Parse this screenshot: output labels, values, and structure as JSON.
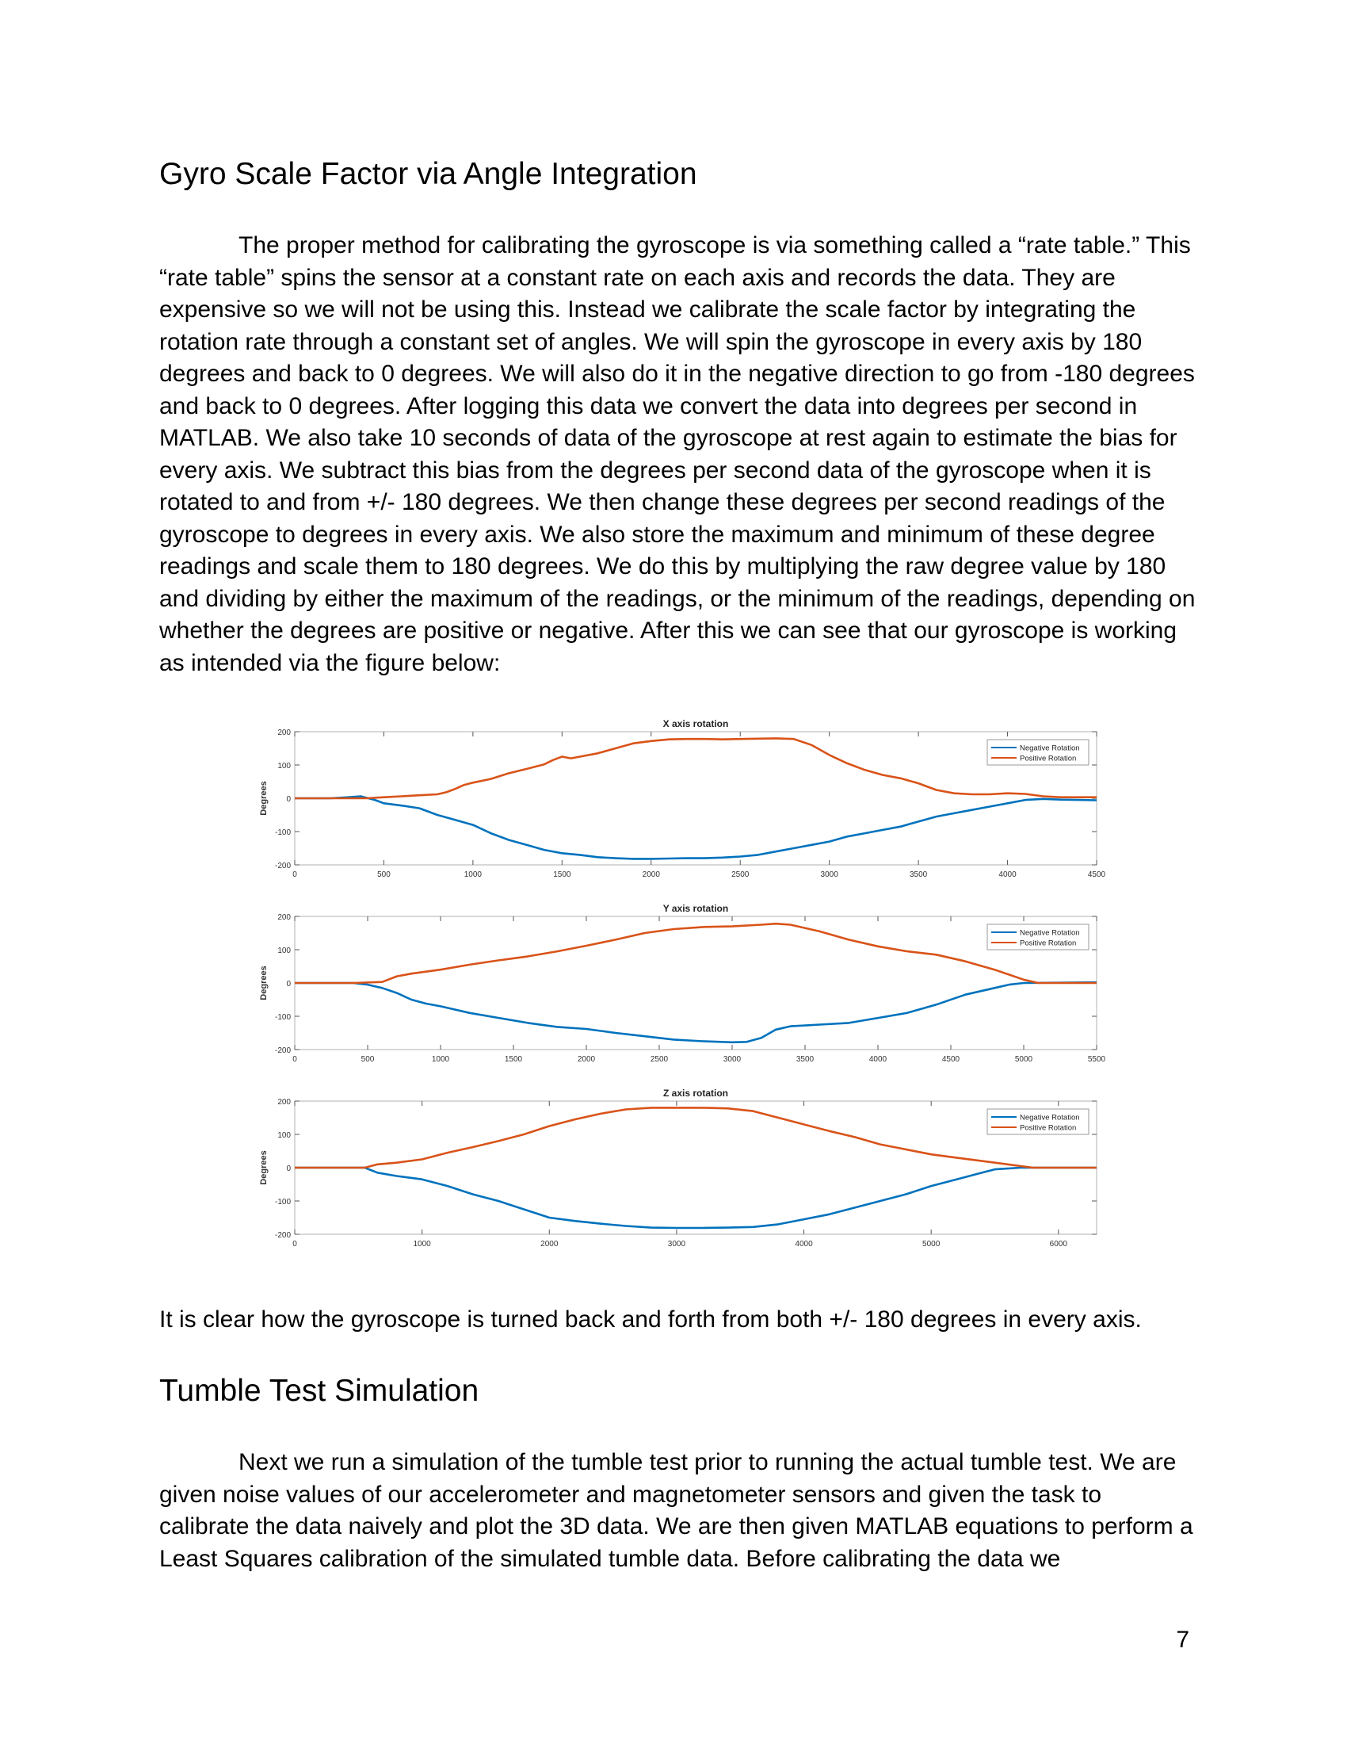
{
  "sections": [
    {
      "heading": "Gyro Scale Factor via Angle Integration",
      "paragraph": "The proper method for calibrating the gyroscope is via something called a “rate table.” This “rate table” spins the sensor at a constant rate on each axis and records the data. They are expensive so we will not be using this. Instead we calibrate the scale factor by integrating the rotation rate through a constant set of angles. We will spin the gyroscope in every axis by 180 degrees and back to 0 degrees. We will also do it in the negative direction to go from -180 degrees and back to 0 degrees. After logging this data we convert the data into degrees per second in MATLAB. We also take 10 seconds of data of the gyroscope at rest again to estimate the bias for every axis. We subtract this bias from the degrees per second data of the gyroscope when it is rotated to and from +/- 180 degrees. We then change these degrees per second readings of the gyroscope to degrees in every axis. We also store the maximum and minimum of these degree readings and scale them to 180 degrees. We do this by multiplying the raw degree value by 180 and dividing by either the maximum of the readings, or the minimum of the readings, depending on whether the degrees are positive or negative. After this we can see that our gyroscope is working as intended via the figure below:"
    },
    {
      "caption": "It is clear how the gyroscope is turned back and forth from both +/- 180 degrees in every axis."
    },
    {
      "heading": "Tumble Test Simulation",
      "paragraph": "Next we run a simulation of the tumble test prior to running the actual tumble test. We are given noise values of our accelerometer and magnetometer sensors and given the task to calibrate the data naively and plot the 3D data. We are then given MATLAB equations to perform a Least Squares calibration of the simulated tumble data. Before calibrating the data we"
    }
  ],
  "page_number": "7",
  "colors": {
    "negative": "#0072BD",
    "positive": "#D95319"
  },
  "chart_data": [
    {
      "type": "line",
      "title": "X axis rotation",
      "ylabel": "Degrees",
      "xlim": [
        0,
        4500
      ],
      "ylim": [
        -200,
        200
      ],
      "xticks": [
        0,
        500,
        1000,
        1500,
        2000,
        2500,
        3000,
        3500,
        4000,
        4500
      ],
      "yticks": [
        200,
        100,
        0,
        -100,
        -200
      ],
      "legend": "top-right",
      "series": [
        {
          "name": "Negative Rotation",
          "points": [
            [
              0,
              0
            ],
            [
              200,
              0
            ],
            [
              300,
              3
            ],
            [
              370,
              6
            ],
            [
              400,
              2
            ],
            [
              450,
              -5
            ],
            [
              500,
              -15
            ],
            [
              600,
              -22
            ],
            [
              700,
              -30
            ],
            [
              800,
              -50
            ],
            [
              900,
              -65
            ],
            [
              1000,
              -80
            ],
            [
              1100,
              -105
            ],
            [
              1200,
              -125
            ],
            [
              1300,
              -140
            ],
            [
              1400,
              -155
            ],
            [
              1500,
              -165
            ],
            [
              1600,
              -170
            ],
            [
              1700,
              -177
            ],
            [
              1800,
              -180
            ],
            [
              1900,
              -182
            ],
            [
              2000,
              -182
            ],
            [
              2100,
              -181
            ],
            [
              2200,
              -180
            ],
            [
              2300,
              -180
            ],
            [
              2400,
              -178
            ],
            [
              2500,
              -175
            ],
            [
              2600,
              -170
            ],
            [
              2700,
              -160
            ],
            [
              2800,
              -150
            ],
            [
              2900,
              -140
            ],
            [
              3000,
              -130
            ],
            [
              3100,
              -115
            ],
            [
              3200,
              -105
            ],
            [
              3300,
              -95
            ],
            [
              3400,
              -85
            ],
            [
              3500,
              -70
            ],
            [
              3600,
              -55
            ],
            [
              3700,
              -45
            ],
            [
              3800,
              -35
            ],
            [
              3900,
              -25
            ],
            [
              4000,
              -15
            ],
            [
              4100,
              -5
            ],
            [
              4200,
              -2
            ],
            [
              4300,
              -4
            ],
            [
              4400,
              -5
            ],
            [
              4500,
              -6
            ]
          ]
        },
        {
          "name": "Positive Rotation",
          "points": [
            [
              0,
              0
            ],
            [
              400,
              0
            ],
            [
              500,
              3
            ],
            [
              600,
              6
            ],
            [
              700,
              9
            ],
            [
              800,
              12
            ],
            [
              850,
              18
            ],
            [
              900,
              28
            ],
            [
              950,
              40
            ],
            [
              1000,
              47
            ],
            [
              1100,
              58
            ],
            [
              1200,
              75
            ],
            [
              1300,
              88
            ],
            [
              1400,
              102
            ],
            [
              1450,
              115
            ],
            [
              1500,
              125
            ],
            [
              1550,
              120
            ],
            [
              1600,
              125
            ],
            [
              1700,
              135
            ],
            [
              1800,
              150
            ],
            [
              1900,
              165
            ],
            [
              2000,
              172
            ],
            [
              2100,
              177
            ],
            [
              2200,
              178
            ],
            [
              2300,
              178
            ],
            [
              2400,
              177
            ],
            [
              2500,
              178
            ],
            [
              2600,
              179
            ],
            [
              2700,
              180
            ],
            [
              2800,
              178
            ],
            [
              2900,
              160
            ],
            [
              3000,
              130
            ],
            [
              3100,
              105
            ],
            [
              3200,
              85
            ],
            [
              3300,
              70
            ],
            [
              3400,
              60
            ],
            [
              3500,
              45
            ],
            [
              3600,
              25
            ],
            [
              3700,
              15
            ],
            [
              3800,
              12
            ],
            [
              3900,
              12
            ],
            [
              4000,
              15
            ],
            [
              4100,
              13
            ],
            [
              4200,
              6
            ],
            [
              4300,
              3
            ],
            [
              4400,
              3
            ],
            [
              4500,
              3
            ]
          ]
        }
      ]
    },
    {
      "type": "line",
      "title": "Y axis rotation",
      "ylabel": "Degrees",
      "xlim": [
        0,
        5500
      ],
      "ylim": [
        -200,
        200
      ],
      "xticks": [
        0,
        500,
        1000,
        1500,
        2000,
        2500,
        3000,
        3500,
        4000,
        4500,
        5000,
        5500
      ],
      "yticks": [
        200,
        100,
        0,
        -100,
        -200
      ],
      "legend": "top-right",
      "series": [
        {
          "name": "Negative Rotation",
          "points": [
            [
              0,
              0
            ],
            [
              400,
              0
            ],
            [
              500,
              -5
            ],
            [
              600,
              -15
            ],
            [
              700,
              -30
            ],
            [
              800,
              -50
            ],
            [
              900,
              -62
            ],
            [
              1000,
              -70
            ],
            [
              1200,
              -90
            ],
            [
              1400,
              -105
            ],
            [
              1600,
              -120
            ],
            [
              1800,
              -132
            ],
            [
              2000,
              -138
            ],
            [
              2200,
              -150
            ],
            [
              2400,
              -160
            ],
            [
              2600,
              -170
            ],
            [
              2800,
              -175
            ],
            [
              3000,
              -178
            ],
            [
              3100,
              -177
            ],
            [
              3200,
              -165
            ],
            [
              3300,
              -140
            ],
            [
              3400,
              -130
            ],
            [
              3600,
              -125
            ],
            [
              3800,
              -120
            ],
            [
              4000,
              -105
            ],
            [
              4200,
              -90
            ],
            [
              4400,
              -65
            ],
            [
              4600,
              -35
            ],
            [
              4800,
              -15
            ],
            [
              4900,
              -5
            ],
            [
              5000,
              0
            ],
            [
              5500,
              2
            ]
          ]
        },
        {
          "name": "Positive Rotation",
          "points": [
            [
              0,
              0
            ],
            [
              400,
              0
            ],
            [
              600,
              3
            ],
            [
              700,
              20
            ],
            [
              800,
              28
            ],
            [
              1000,
              40
            ],
            [
              1200,
              55
            ],
            [
              1400,
              68
            ],
            [
              1600,
              80
            ],
            [
              1800,
              95
            ],
            [
              2000,
              112
            ],
            [
              2200,
              130
            ],
            [
              2400,
              150
            ],
            [
              2600,
              162
            ],
            [
              2800,
              168
            ],
            [
              3000,
              170
            ],
            [
              3200,
              175
            ],
            [
              3300,
              178
            ],
            [
              3400,
              175
            ],
            [
              3600,
              155
            ],
            [
              3800,
              130
            ],
            [
              4000,
              110
            ],
            [
              4200,
              95
            ],
            [
              4400,
              85
            ],
            [
              4600,
              65
            ],
            [
              4800,
              40
            ],
            [
              5000,
              10
            ],
            [
              5100,
              0
            ],
            [
              5500,
              0
            ]
          ]
        }
      ]
    },
    {
      "type": "line",
      "title": "Z axis rotation",
      "ylabel": "Degrees",
      "xlim": [
        0,
        6300
      ],
      "ylim": [
        -200,
        200
      ],
      "xticks": [
        0,
        1000,
        2000,
        3000,
        4000,
        5000,
        6000
      ],
      "yticks": [
        200,
        100,
        0,
        -100,
        -200
      ],
      "legend": "top-right",
      "series": [
        {
          "name": "Negative Rotation",
          "points": [
            [
              0,
              0
            ],
            [
              550,
              0
            ],
            [
              650,
              -15
            ],
            [
              800,
              -25
            ],
            [
              1000,
              -35
            ],
            [
              1200,
              -55
            ],
            [
              1400,
              -80
            ],
            [
              1600,
              -100
            ],
            [
              1800,
              -125
            ],
            [
              2000,
              -150
            ],
            [
              2200,
              -160
            ],
            [
              2400,
              -168
            ],
            [
              2600,
              -175
            ],
            [
              2800,
              -180
            ],
            [
              3000,
              -181
            ],
            [
              3200,
              -181
            ],
            [
              3400,
              -180
            ],
            [
              3600,
              -178
            ],
            [
              3800,
              -170
            ],
            [
              4000,
              -155
            ],
            [
              4200,
              -140
            ],
            [
              4400,
              -120
            ],
            [
              4600,
              -100
            ],
            [
              4800,
              -80
            ],
            [
              5000,
              -55
            ],
            [
              5200,
              -35
            ],
            [
              5400,
              -15
            ],
            [
              5500,
              -5
            ],
            [
              5700,
              0
            ],
            [
              6300,
              0
            ]
          ]
        },
        {
          "name": "Positive Rotation",
          "points": [
            [
              0,
              0
            ],
            [
              550,
              0
            ],
            [
              650,
              10
            ],
            [
              800,
              15
            ],
            [
              1000,
              25
            ],
            [
              1200,
              45
            ],
            [
              1400,
              62
            ],
            [
              1600,
              80
            ],
            [
              1800,
              100
            ],
            [
              2000,
              125
            ],
            [
              2200,
              145
            ],
            [
              2400,
              162
            ],
            [
              2600,
              175
            ],
            [
              2800,
              180
            ],
            [
              3000,
              180
            ],
            [
              3200,
              180
            ],
            [
              3400,
              178
            ],
            [
              3600,
              170
            ],
            [
              3800,
              150
            ],
            [
              4000,
              130
            ],
            [
              4200,
              110
            ],
            [
              4400,
              92
            ],
            [
              4600,
              70
            ],
            [
              4800,
              55
            ],
            [
              5000,
              40
            ],
            [
              5200,
              30
            ],
            [
              5400,
              20
            ],
            [
              5600,
              10
            ],
            [
              5800,
              0
            ],
            [
              6300,
              0
            ]
          ]
        }
      ]
    }
  ]
}
